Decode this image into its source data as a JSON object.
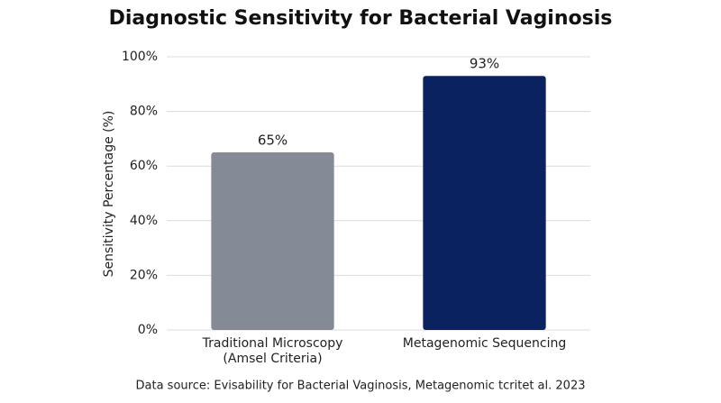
{
  "chart_data": {
    "type": "bar",
    "title": "Diagnostic Sensitivity for Bacterial Vaginosis",
    "y_label": "Sensitivity Percentage (%)",
    "categories": [
      "Traditional Microscopy\n(Amsel Criteria)",
      "Metagenomic Sequencing"
    ],
    "values": [
      65,
      93
    ],
    "value_labels": [
      "65%",
      "93%"
    ],
    "colors": [
      "#858b96",
      "#0b2260"
    ],
    "ylim": [
      0,
      100
    ],
    "yticks": [
      {
        "value": 0,
        "label": "0%"
      },
      {
        "value": 20,
        "label": "20%"
      },
      {
        "value": 40,
        "label": "40%"
      },
      {
        "value": 60,
        "label": "60%"
      },
      {
        "value": 80,
        "label": "80%"
      },
      {
        "value": 100,
        "label": "100%"
      }
    ],
    "grid": true,
    "footnote": "Data source: Evisability for Bacterial Vaginosis, Metagenomic tcritet al. 2023"
  }
}
